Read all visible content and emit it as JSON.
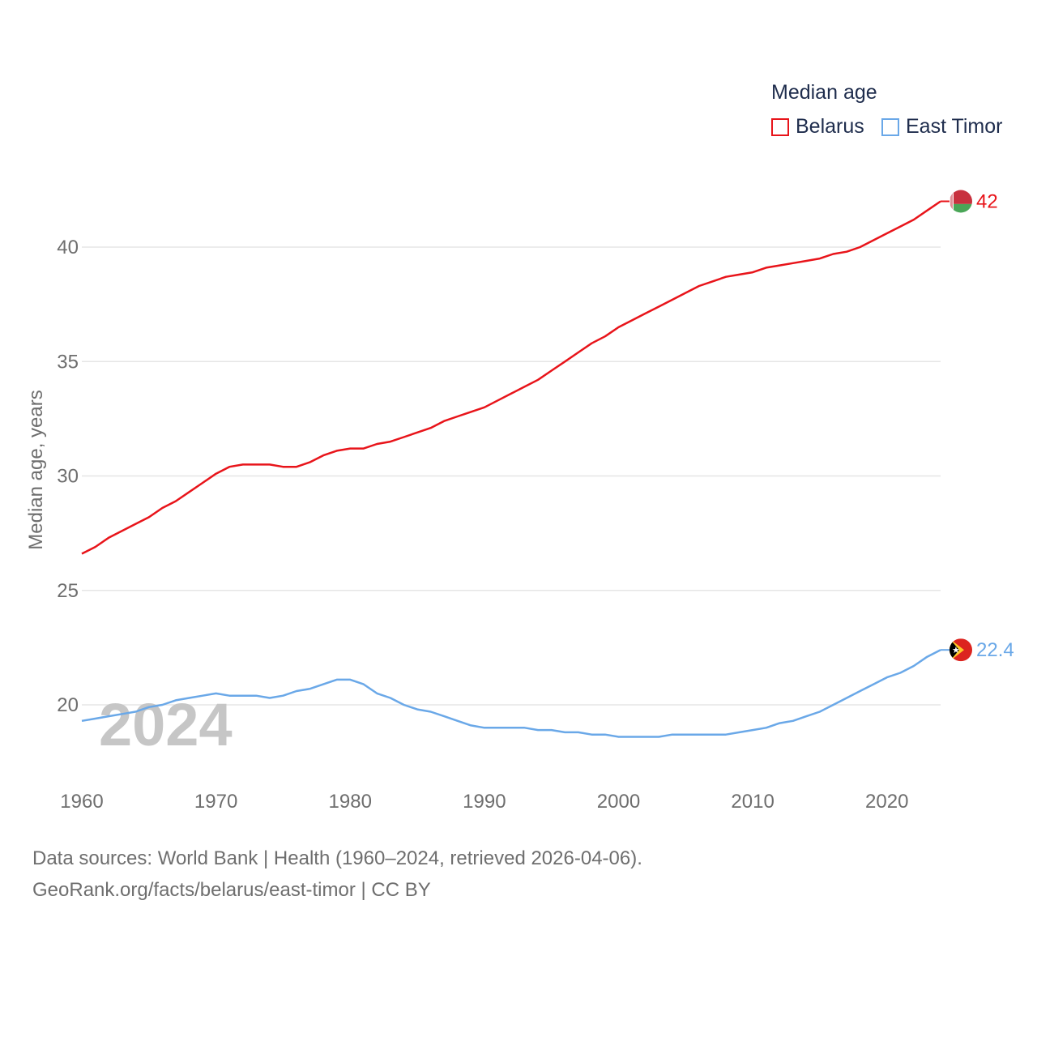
{
  "legend": {
    "title": "Median age",
    "items": [
      {
        "label": "Belarus",
        "color": "#e8141a"
      },
      {
        "label": "East Timor",
        "color": "#6aa8e8"
      }
    ]
  },
  "footer": {
    "line1": "Data sources: World Bank | Health (1960–2024, retrieved 2026-04-06).",
    "line2": "GeoRank.org/facts/belarus/east-timor | CC BY"
  },
  "chart_data": {
    "type": "line",
    "title": "Median age",
    "ylabel": "Median age, years",
    "xlabel": "",
    "year_watermark": "2024",
    "xlim": [
      1960,
      2024
    ],
    "ylim": [
      16.5,
      43
    ],
    "xticks": [
      1960,
      1970,
      1980,
      1990,
      2000,
      2010,
      2020
    ],
    "yticks": [
      20,
      25,
      30,
      35,
      40
    ],
    "grid": true,
    "x": [
      1960,
      1961,
      1962,
      1963,
      1964,
      1965,
      1966,
      1967,
      1968,
      1969,
      1970,
      1971,
      1972,
      1973,
      1974,
      1975,
      1976,
      1977,
      1978,
      1979,
      1980,
      1981,
      1982,
      1983,
      1984,
      1985,
      1986,
      1987,
      1988,
      1989,
      1990,
      1991,
      1992,
      1993,
      1994,
      1995,
      1996,
      1997,
      1998,
      1999,
      2000,
      2001,
      2002,
      2003,
      2004,
      2005,
      2006,
      2007,
      2008,
      2009,
      2010,
      2011,
      2012,
      2013,
      2014,
      2015,
      2016,
      2017,
      2018,
      2019,
      2020,
      2021,
      2022,
      2023,
      2024
    ],
    "series": [
      {
        "name": "Belarus",
        "color": "#e8141a",
        "end_label": "42",
        "values": [
          26.6,
          26.9,
          27.3,
          27.6,
          27.9,
          28.2,
          28.6,
          28.9,
          29.3,
          29.7,
          30.1,
          30.4,
          30.5,
          30.5,
          30.5,
          30.4,
          30.4,
          30.6,
          30.9,
          31.1,
          31.2,
          31.2,
          31.4,
          31.5,
          31.7,
          31.9,
          32.1,
          32.4,
          32.6,
          32.8,
          33.0,
          33.3,
          33.6,
          33.9,
          34.2,
          34.6,
          35.0,
          35.4,
          35.8,
          36.1,
          36.5,
          36.8,
          37.1,
          37.4,
          37.7,
          38.0,
          38.3,
          38.5,
          38.7,
          38.8,
          38.9,
          39.1,
          39.2,
          39.3,
          39.4,
          39.5,
          39.7,
          39.8,
          40.0,
          40.3,
          40.6,
          40.9,
          41.2,
          41.6,
          42.0
        ]
      },
      {
        "name": "East Timor",
        "color": "#6aa8e8",
        "end_label": "22.4",
        "values": [
          19.3,
          19.4,
          19.5,
          19.6,
          19.7,
          19.9,
          20.0,
          20.2,
          20.3,
          20.4,
          20.5,
          20.4,
          20.4,
          20.4,
          20.3,
          20.4,
          20.6,
          20.7,
          20.9,
          21.1,
          21.1,
          20.9,
          20.5,
          20.3,
          20.0,
          19.8,
          19.7,
          19.5,
          19.3,
          19.1,
          19.0,
          19.0,
          19.0,
          19.0,
          18.9,
          18.9,
          18.8,
          18.8,
          18.7,
          18.7,
          18.6,
          18.6,
          18.6,
          18.6,
          18.7,
          18.7,
          18.7,
          18.7,
          18.7,
          18.8,
          18.9,
          19.0,
          19.2,
          19.3,
          19.5,
          19.7,
          20.0,
          20.3,
          20.6,
          20.9,
          21.2,
          21.4,
          21.7,
          22.1,
          22.4
        ]
      }
    ]
  }
}
